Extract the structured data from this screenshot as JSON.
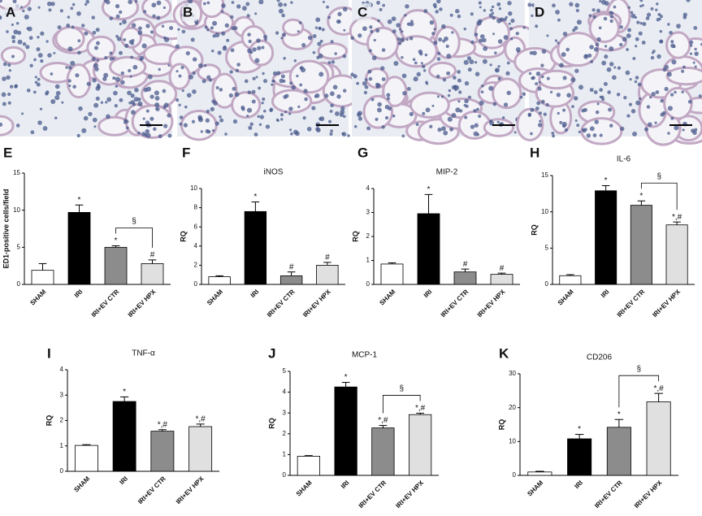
{
  "images": [
    {
      "label": "A"
    },
    {
      "label": "B"
    },
    {
      "label": "C"
    },
    {
      "label": "D"
    }
  ],
  "chart_data": [
    {
      "type": "bar",
      "panel": "E",
      "ylabel": "ED1-positive cells/field",
      "categories": [
        "SHAM",
        "IRI",
        "IRI+EV CTR",
        "IRI+EV HPX"
      ],
      "values": [
        1.9,
        9.7,
        5.0,
        2.8
      ],
      "errors": [
        0.9,
        1.0,
        0.2,
        0.5
      ],
      "bar_labels": [
        null,
        "*",
        "*",
        "#"
      ],
      "bracket": "§",
      "colors": [
        "#ffffff",
        "#000000",
        "#8c8c8c",
        "#e0e0e0"
      ],
      "ylim": [
        0,
        15
      ],
      "yticks": [
        0,
        5,
        10,
        15
      ]
    },
    {
      "type": "bar",
      "panel": "F",
      "title": "iNOS",
      "ylabel": "RQ",
      "categories": [
        "SHAM",
        "IRI",
        "IRI+EV CTR",
        "IRI+EV HPX"
      ],
      "values": [
        0.8,
        7.6,
        0.9,
        2.0
      ],
      "errors": [
        0.1,
        1.0,
        0.4,
        0.3
      ],
      "bar_labels": [
        null,
        "*",
        "#",
        "#"
      ],
      "colors": [
        "#ffffff",
        "#000000",
        "#8c8c8c",
        "#e0e0e0"
      ],
      "ylim": [
        0,
        10
      ],
      "yticks": [
        0,
        2,
        4,
        6,
        8,
        10
      ]
    },
    {
      "type": "bar",
      "panel": "G",
      "title": "MIP-2",
      "ylabel": "RQ",
      "categories": [
        "SHAM",
        "IRI",
        "IRI+EV CTR",
        "IRI+EV HPX"
      ],
      "values": [
        0.85,
        2.95,
        0.52,
        0.42
      ],
      "errors": [
        0.05,
        0.8,
        0.12,
        0.05
      ],
      "bar_labels": [
        null,
        "*",
        "#",
        "#"
      ],
      "colors": [
        "#ffffff",
        "#000000",
        "#8c8c8c",
        "#e0e0e0"
      ],
      "ylim": [
        0,
        4
      ],
      "yticks": [
        0,
        1,
        2,
        3,
        4
      ]
    },
    {
      "type": "bar",
      "panel": "H",
      "title": "IL-6",
      "ylabel": "RQ",
      "categories": [
        "SHAM",
        "IRI",
        "IRI+EV CTR",
        "IRI+EV HPX"
      ],
      "values": [
        1.2,
        12.9,
        10.9,
        8.2
      ],
      "errors": [
        0.15,
        0.7,
        0.6,
        0.4
      ],
      "bar_labels": [
        null,
        "*",
        "*",
        "*,#"
      ],
      "bracket": "§",
      "colors": [
        "#ffffff",
        "#000000",
        "#8c8c8c",
        "#e0e0e0"
      ],
      "ylim": [
        0,
        15
      ],
      "yticks": [
        0,
        5,
        10,
        15
      ]
    },
    {
      "type": "bar",
      "panel": "I",
      "title": "TNF-α",
      "ylabel": "RQ",
      "categories": [
        "SHAM",
        "IRI",
        "IRI+EV CTR",
        "IRI+EV HPX"
      ],
      "values": [
        1.02,
        2.75,
        1.58,
        1.76
      ],
      "errors": [
        0.03,
        0.18,
        0.06,
        0.1
      ],
      "bar_labels": [
        null,
        "*",
        "*,#",
        "*,#"
      ],
      "colors": [
        "#ffffff",
        "#000000",
        "#8c8c8c",
        "#e0e0e0"
      ],
      "ylim": [
        0,
        4
      ],
      "yticks": [
        0,
        1,
        2,
        3,
        4
      ]
    },
    {
      "type": "bar",
      "panel": "J",
      "title": "MCP-1",
      "ylabel": "RQ",
      "categories": [
        "SHAM",
        "IRI",
        "IRI+EV CTR",
        "IRI+EV HPX"
      ],
      "values": [
        0.92,
        4.25,
        2.28,
        2.92
      ],
      "errors": [
        0.03,
        0.22,
        0.12,
        0.07
      ],
      "bar_labels": [
        null,
        "*",
        "*,#",
        "*,#"
      ],
      "bracket": "§",
      "colors": [
        "#ffffff",
        "#000000",
        "#8c8c8c",
        "#e0e0e0"
      ],
      "ylim": [
        0,
        5
      ],
      "yticks": [
        0,
        1,
        2,
        3,
        4,
        5
      ]
    },
    {
      "type": "bar",
      "panel": "K",
      "title": "CD206",
      "ylabel": "RQ",
      "categories": [
        "SHAM",
        "IRI",
        "IRI+EV CTR",
        "IRI+EV HPX"
      ],
      "values": [
        1.0,
        10.8,
        14.2,
        21.7
      ],
      "errors": [
        0.2,
        1.3,
        2.3,
        2.5
      ],
      "bar_labels": [
        null,
        "*",
        "*",
        "*,#"
      ],
      "bracket": "§",
      "colors": [
        "#ffffff",
        "#000000",
        "#8c8c8c",
        "#e0e0e0"
      ],
      "ylim": [
        0,
        30
      ],
      "yticks": [
        0,
        10,
        20,
        30
      ]
    }
  ]
}
